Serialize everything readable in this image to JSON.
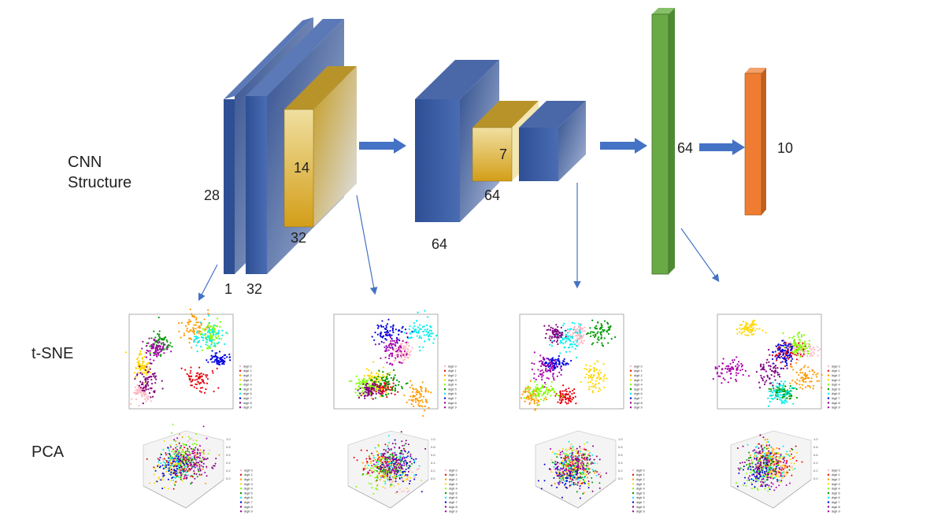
{
  "labels": {
    "cnn_line1": "CNN",
    "cnn_line2": "Structure",
    "tsne": "t-SNE",
    "pca": "PCA"
  },
  "dims": {
    "input_height": "28",
    "input_channels": "1",
    "conv1_channels": "32",
    "pool1_size": "14",
    "pool1_channels": "32",
    "conv2_channels": "64",
    "pool2_size": "7",
    "pool2_channels": "64",
    "fc_units": "64",
    "output_units": "10"
  },
  "legend": [
    "digit 0",
    "digit 1",
    "digit 2",
    "digit 3",
    "digit 4",
    "digit 5",
    "digit 6",
    "digit 7",
    "digit 8",
    "digit 9"
  ],
  "pca_ticks": [
    "1.0",
    "0.8",
    "0.6",
    "0.4",
    "0.2",
    "0.0"
  ],
  "digit_colors": [
    "#ffb6c1",
    "#e8000b",
    "#ff9900",
    "#ffd700",
    "#7fff00",
    "#009900",
    "#00eeee",
    "#0000dd",
    "#800080",
    "#aa00aa"
  ],
  "layer_colors": {
    "blue_front": "#3a5ea8",
    "blue_side": "#2c4a88",
    "blue_top": "#5a7ab8",
    "gold_front": "#d4a62a",
    "gold_side": "#f3e6b0",
    "green": "#6aaa46",
    "orange": "#ee7d31",
    "arrow": "#4472c4"
  }
}
